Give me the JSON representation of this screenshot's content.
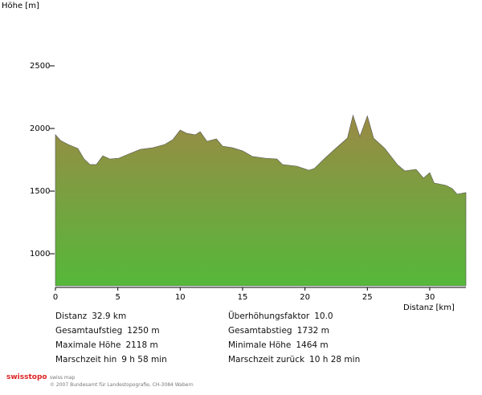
{
  "chart_data": {
    "type": "area",
    "y_label": "Höhe [m]",
    "x_label": "Distanz [km]",
    "x": [
      0,
      0.4,
      1.03,
      1.8,
      2.3,
      2.77,
      3.28,
      3.8,
      4.37,
      5.08,
      5.85,
      6.8,
      7.8,
      8.75,
      9.4,
      10,
      10.5,
      11.2,
      11.6,
      12.15,
      12.9,
      13.4,
      14.2,
      15,
      15.8,
      16.8,
      17.75,
      18.2,
      19.35,
      19.9,
      20.3,
      20.75,
      21.6,
      22.45,
      23.4,
      23.85,
      24.4,
      25,
      25.5,
      26.4,
      27.4,
      28,
      28.9,
      29.5,
      30,
      30.35,
      31.3,
      31.8,
      32.2,
      32.9
    ],
    "values": [
      1950,
      1905,
      1872,
      1840,
      1756,
      1712,
      1712,
      1782,
      1756,
      1763,
      1795,
      1833,
      1846,
      1872,
      1910,
      1987,
      1962,
      1949,
      1974,
      1897,
      1917,
      1859,
      1846,
      1821,
      1776,
      1763,
      1756,
      1712,
      1699,
      1680,
      1667,
      1680,
      1763,
      1840,
      1923,
      2105,
      1936,
      2100,
      1923,
      1840,
      1712,
      1661,
      1674,
      1604,
      1648,
      1565,
      1546,
      1520,
      1475,
      1488
    ],
    "gradient": [
      "#9a8a45",
      "#55b83a"
    ],
    "xlim": [
      0,
      32.9
    ],
    "ylim": [
      744,
      2500
    ],
    "xticks": [
      0,
      5,
      10,
      15,
      20,
      25,
      30
    ],
    "yticks": [
      1000,
      1500,
      2000,
      2500
    ]
  },
  "stats_left": [
    {
      "label": "Distanz",
      "value": "32.9 km"
    },
    {
      "label": "Gesamtaufstieg",
      "value": "1250 m"
    },
    {
      "label": "Maximale Höhe",
      "value": "2118 m"
    },
    {
      "label": "Marschzeit hin",
      "value": "9 h 58 min"
    }
  ],
  "stats_right": [
    {
      "label": "Überhöhungsfaktor",
      "value": "10.0"
    },
    {
      "label": "Gesamtabstieg",
      "value": "1732 m"
    },
    {
      "label": "Minimale Höhe",
      "value": "1464 m"
    },
    {
      "label": "Marschzeit zurück",
      "value": "10 h 28 min"
    }
  ],
  "footer": {
    "logo": "swisstopo",
    "product": "swiss map",
    "copyright": "© 2007 Bundesamt für Landestopografie, CH-3084 Wabern"
  }
}
